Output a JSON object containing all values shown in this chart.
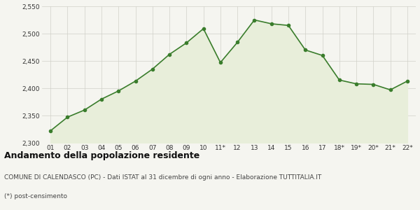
{
  "x_labels": [
    "01",
    "02",
    "03",
    "04",
    "05",
    "06",
    "07",
    "08",
    "09",
    "10",
    "11*",
    "12",
    "13",
    "14",
    "15",
    "16",
    "17",
    "18*",
    "19*",
    "20*",
    "21*",
    "22*"
  ],
  "y_values": [
    2322,
    2347,
    2360,
    2380,
    2395,
    2413,
    2435,
    2462,
    2483,
    2509,
    2447,
    2484,
    2525,
    2518,
    2515,
    2470,
    2460,
    2415,
    2408,
    2407,
    2397,
    2413
  ],
  "line_color": "#3a7d2c",
  "fill_color": "#e8eeda",
  "marker_color": "#3a7d2c",
  "bg_color": "#f5f5f0",
  "grid_color": "#d0d0c8",
  "ylim_min": 2300,
  "ylim_max": 2550,
  "yticks": [
    2300,
    2350,
    2400,
    2450,
    2500,
    2550
  ],
  "title_line1": "Andamento della popolazione residente",
  "title_line2": "COMUNE DI CALENDASCO (PC) - Dati ISTAT al 31 dicembre di ogni anno - Elaborazione TUTTITALIA.IT",
  "title_line3": "(*) post-censimento",
  "title1_fontsize": 9,
  "title2_fontsize": 6.5,
  "title3_fontsize": 6.5
}
